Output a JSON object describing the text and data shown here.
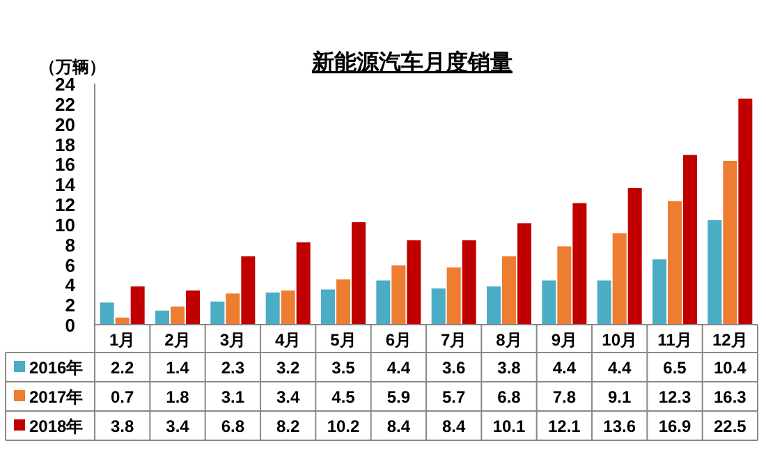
{
  "chart_data": {
    "type": "bar",
    "title": "新能源汽车月度销量",
    "ylabel": "（万辆）",
    "categories": [
      "1月",
      "2月",
      "3月",
      "4月",
      "5月",
      "6月",
      "7月",
      "8月",
      "9月",
      "10月",
      "11月",
      "12月"
    ],
    "series": [
      {
        "name": "2016年",
        "color": "#4bacc6",
        "values": [
          2.2,
          1.4,
          2.3,
          3.2,
          3.5,
          4.4,
          3.6,
          3.8,
          4.4,
          4.4,
          6.5,
          10.4
        ]
      },
      {
        "name": "2017年",
        "color": "#ed7d31",
        "values": [
          0.7,
          1.8,
          3.1,
          3.4,
          4.5,
          5.9,
          5.7,
          6.8,
          7.8,
          9.1,
          12.3,
          16.3
        ]
      },
      {
        "name": "2018年",
        "color": "#c00000",
        "values": [
          3.8,
          3.4,
          6.8,
          8.2,
          10.2,
          8.4,
          8.4,
          10.1,
          12.1,
          13.6,
          16.9,
          22.5
        ]
      }
    ],
    "ylim": [
      0,
      24
    ],
    "yticks": [
      0,
      2,
      4,
      6,
      8,
      10,
      12,
      14,
      16,
      18,
      20,
      22,
      24
    ],
    "data_labels": true,
    "legend": "bottom left",
    "grid": false
  }
}
